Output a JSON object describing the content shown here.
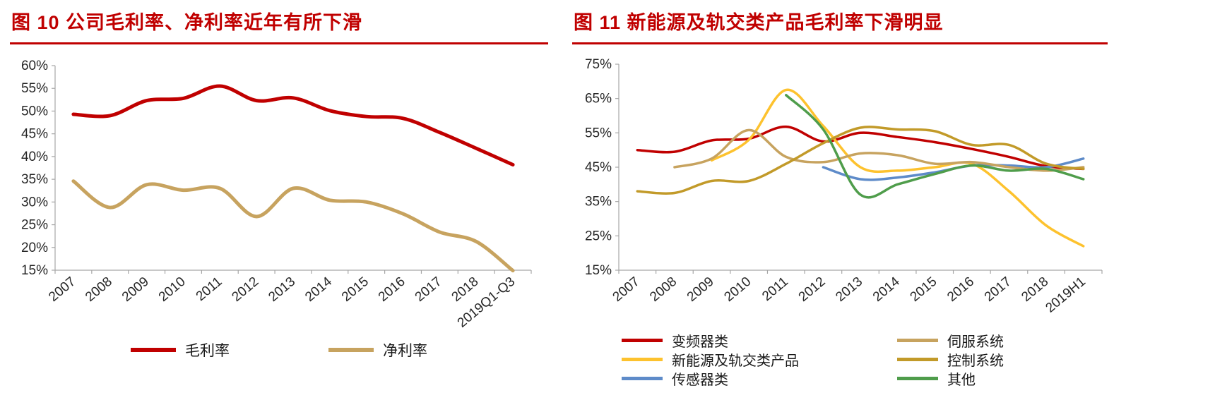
{
  "accent": {
    "red": "#C00000"
  },
  "figures": [
    {
      "id": "fig10",
      "title": "图 10  公司毛利率、净利率近年有所下滑"
    },
    {
      "id": "fig11",
      "title": "图 11  新能源及轨交类产品毛利率下滑明显"
    }
  ],
  "chart_data": [
    {
      "type": "line",
      "title": "公司毛利率、净利率近年有所下滑",
      "categories": [
        "2007",
        "2008",
        "2009",
        "2010",
        "2011",
        "2012",
        "2013",
        "2014",
        "2015",
        "2016",
        "2017",
        "2018",
        "2019Q1-Q3"
      ],
      "series": [
        {
          "name": "毛利率",
          "color": "#C00000",
          "values": [
            49.3,
            49.0,
            52.3,
            52.8,
            55.5,
            52.3,
            52.9,
            50.1,
            48.8,
            48.4,
            45.3,
            41.8,
            38.2
          ]
        },
        {
          "name": "净利率",
          "color": "#C7A35F",
          "values": [
            34.6,
            28.8,
            33.8,
            32.6,
            33.0,
            26.8,
            33.0,
            30.4,
            30.0,
            27.4,
            23.4,
            21.3,
            14.9
          ]
        }
      ],
      "ylim": [
        15,
        60
      ],
      "y_ticks": [
        15,
        20,
        25,
        30,
        35,
        40,
        45,
        50,
        55,
        60
      ],
      "y_tick_suffix": "%",
      "grid": false,
      "legend_position": "bottom",
      "line_style": "smooth"
    },
    {
      "type": "line",
      "title": "新能源及轨交类产品毛利率下滑明显",
      "categories": [
        "2007",
        "2008",
        "2009",
        "2010",
        "2011",
        "2012",
        "2013",
        "2014",
        "2015",
        "2016",
        "2017",
        "2018",
        "2019H1"
      ],
      "series": [
        {
          "name": "变频器类",
          "color": "#C00000",
          "values": [
            50.0,
            49.5,
            52.8,
            53.3,
            56.8,
            52.5,
            55.0,
            53.8,
            52.3,
            50.3,
            48.0,
            45.3,
            44.5
          ]
        },
        {
          "name": "新能源及轨交类产品",
          "color": "#FDC22E",
          "values": [
            null,
            null,
            47.0,
            53.0,
            67.5,
            57.0,
            45.0,
            44.0,
            45.0,
            46.0,
            38.0,
            28.0,
            22.0
          ]
        },
        {
          "name": "传感器类",
          "color": "#5E8BC9",
          "values": [
            null,
            null,
            null,
            null,
            null,
            45.0,
            41.5,
            42.0,
            43.5,
            45.5,
            45.5,
            45.0,
            47.5
          ]
        },
        {
          "name": "伺服系统",
          "color": "#C7A35F",
          "values": [
            null,
            45.0,
            47.5,
            55.8,
            48.0,
            46.5,
            49.0,
            48.5,
            46.0,
            46.5,
            45.0,
            44.0,
            45.0
          ]
        },
        {
          "name": "控制系统",
          "color": "#C29A29",
          "values": [
            38.0,
            37.5,
            41.0,
            41.0,
            46.0,
            52.0,
            56.5,
            56.0,
            55.5,
            51.5,
            51.5,
            46.0,
            44.5
          ]
        },
        {
          "name": "其他",
          "color": "#4F9D4B",
          "values": [
            null,
            null,
            null,
            null,
            66.0,
            56.0,
            37.0,
            40.0,
            43.0,
            45.5,
            44.0,
            44.5,
            41.5
          ]
        }
      ],
      "ylim": [
        15,
        75
      ],
      "y_ticks": [
        15,
        25,
        35,
        45,
        55,
        65,
        75
      ],
      "y_tick_suffix": "%",
      "grid": false,
      "legend_position": "bottom",
      "line_style": "smooth"
    }
  ]
}
